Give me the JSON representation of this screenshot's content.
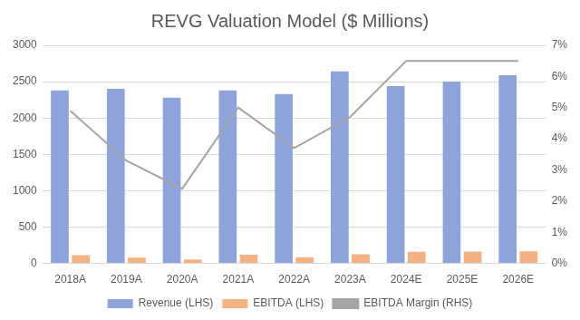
{
  "chart_data": {
    "type": "bar",
    "title": "REVG Valuation Model ($ Millions)",
    "categories": [
      "2018A",
      "2019A",
      "2020A",
      "2021A",
      "2022A",
      "2023A",
      "2024E",
      "2025E",
      "2026E"
    ],
    "series": [
      {
        "name": "Revenue (LHS)",
        "color": "#8ea3dc",
        "values": [
          2380,
          2400,
          2280,
          2380,
          2330,
          2640,
          2440,
          2500,
          2590
        ]
      },
      {
        "name": "EBITDA (LHS)",
        "color": "#f4b183",
        "values": [
          115,
          78,
          55,
          120,
          85,
          125,
          160,
          163,
          168
        ]
      },
      {
        "name": "EBITDA Margin (RHS)",
        "type": "line",
        "axis": "y2",
        "color": "#a5a5a5",
        "values": [
          4.9,
          3.3,
          2.4,
          5.0,
          3.7,
          4.7,
          6.5,
          6.5,
          6.5
        ]
      }
    ],
    "ylim": [
      0,
      3000
    ],
    "yticks": [
      0,
      500,
      1000,
      1500,
      2000,
      2500,
      3000
    ],
    "y2lim": [
      0,
      7
    ],
    "y2ticks": [
      {
        "value": 0,
        "label": "0%"
      },
      {
        "value": 1,
        "label": "1%"
      },
      {
        "value": 2,
        "label": "2%"
      },
      {
        "value": 3,
        "label": "3%"
      },
      {
        "value": 4,
        "label": "4%"
      },
      {
        "value": 5,
        "label": "5%"
      },
      {
        "value": 6,
        "label": "6%"
      },
      {
        "value": 7,
        "label": "7%"
      }
    ],
    "grid": true,
    "legend": "bottom"
  }
}
